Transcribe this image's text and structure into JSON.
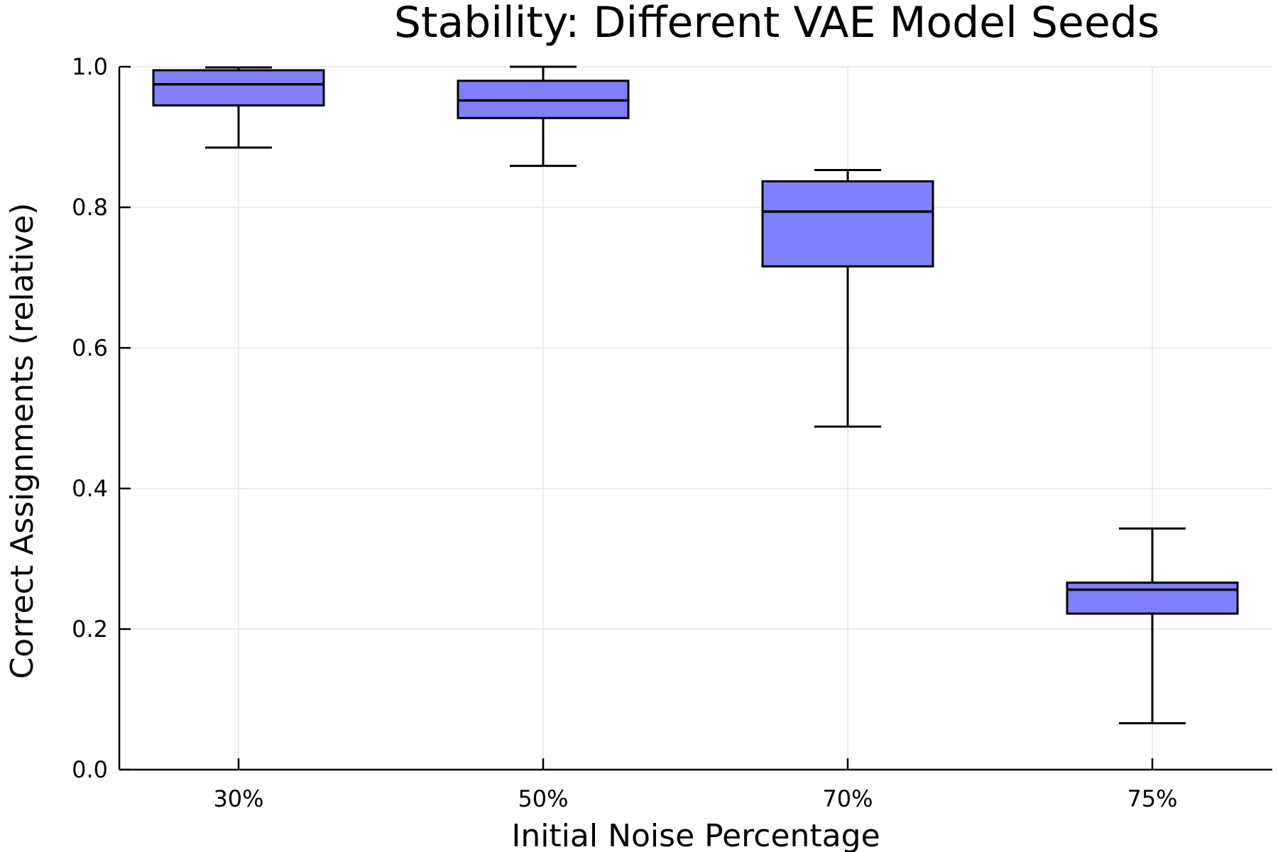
{
  "chart_data": {
    "type": "box",
    "title": "Stability: Different VAE Model Seeds",
    "xlabel": "Initial Noise Percentage",
    "ylabel": "Correct Assignments (relative)",
    "categories": [
      "30%",
      "50%",
      "70%",
      "75%"
    ],
    "yticks": [
      "0.0",
      "0.2",
      "0.4",
      "0.6",
      "0.8",
      "1.0"
    ],
    "ylim": [
      0.0,
      1.0
    ],
    "grid": true,
    "legend": "none",
    "box_color": "#8080ff",
    "series": [
      {
        "category": "30%",
        "whisker_low": 0.885,
        "q1": 0.945,
        "median": 0.975,
        "q3": 0.995,
        "whisker_high": 0.999
      },
      {
        "category": "50%",
        "whisker_low": 0.859,
        "q1": 0.927,
        "median": 0.952,
        "q3": 0.98,
        "whisker_high": 1.0
      },
      {
        "category": "70%",
        "whisker_low": 0.488,
        "q1": 0.716,
        "median": 0.794,
        "q3": 0.837,
        "whisker_high": 0.853
      },
      {
        "category": "75%",
        "whisker_low": 0.066,
        "q1": 0.222,
        "median": 0.256,
        "q3": 0.266,
        "whisker_high": 0.343
      }
    ]
  }
}
